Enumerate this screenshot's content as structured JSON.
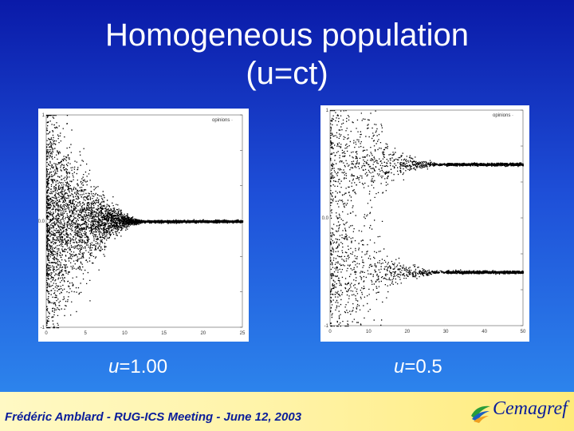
{
  "slide": {
    "title_line1": "Homogeneous population",
    "title_line2": "(u=ct)",
    "left_caption_var": "u",
    "left_caption_val": "=1.00",
    "right_caption_var": "u",
    "right_caption_val": "=0.5",
    "footer": "Frédéric Amblard - RUG-ICS Meeting - June 12, 2003",
    "logo_text": "Cemagref"
  },
  "colors": {
    "background_top": "#0a1aa8",
    "background_bottom": "#2f8ef0",
    "title": "#ffffff",
    "footer_text": "#0a1d9a",
    "footer_background": "#fff3a6",
    "points": "#000000"
  },
  "chart_data": [
    {
      "type": "scatter",
      "legend": "opinions",
      "legend_position": "top-right",
      "x_ticks": [
        "0",
        "5",
        "10",
        "15",
        "20",
        "25"
      ],
      "y_ticks": [
        "-1",
        "0.0",
        "1"
      ],
      "xlim": [
        0,
        25
      ],
      "ylim": [
        -1,
        1
      ],
      "convergence_clusters": [
        0.0
      ],
      "description_series": [
        {
          "name": "opinions",
          "cluster_centers": [
            0.0
          ],
          "converged_by_x": 13
        }
      ]
    },
    {
      "type": "scatter",
      "legend": "opinions",
      "legend_position": "top-right",
      "x_ticks": [
        "0",
        "10",
        "20",
        "30",
        "40",
        "50"
      ],
      "y_ticks": [
        "-1",
        "0.0",
        "1"
      ],
      "xlim": [
        0,
        50
      ],
      "ylim": [
        -1,
        1
      ],
      "convergence_clusters": [
        0.5,
        -0.5
      ],
      "description_series": [
        {
          "name": "opinions",
          "cluster_centers": [
            0.5,
            -0.5
          ],
          "converged_by_x": 30
        }
      ]
    }
  ]
}
